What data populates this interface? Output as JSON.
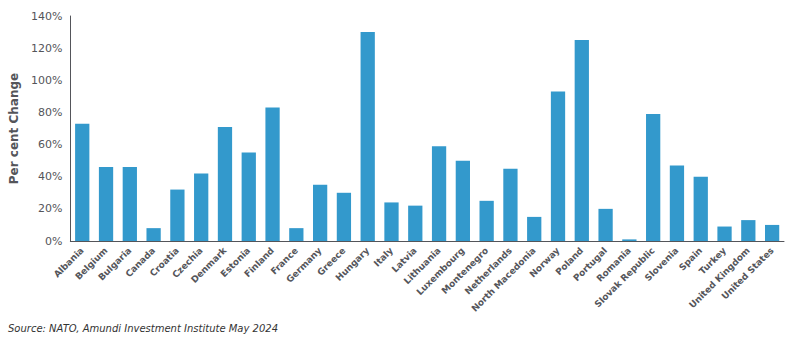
{
  "chart_data": {
    "type": "bar",
    "ylabel": "Per cent Change",
    "annotation": "Source: NATO, Amundi Investment Institute May 2024",
    "categories": [
      "Albania",
      "Belgium",
      "Bulgaria",
      "Canada",
      "Croatia",
      "Czechia",
      "Denmark",
      "Estonia",
      "Finland",
      "France",
      "Germany",
      "Greece",
      "Hungary",
      "Italy",
      "Latvia",
      "Lithuania",
      "Luxembourg",
      "Montenegro",
      "Netherlands",
      "North Macedonia",
      "Norway",
      "Poland",
      "Portugal",
      "Romania",
      "Slovak Republic",
      "Slovenia",
      "Spain",
      "Turkey",
      "United Kingdom",
      "United States"
    ],
    "values": [
      73,
      46,
      46,
      8,
      32,
      42,
      71,
      55,
      83,
      8,
      35,
      30,
      130,
      24,
      22,
      59,
      50,
      25,
      45,
      15,
      93,
      125,
      20,
      1,
      79,
      47,
      40,
      9,
      13,
      10
    ],
    "color": "#3399cc",
    "ylim": [
      0,
      140
    ],
    "yticks": [
      {
        "value": 0,
        "label": "0%"
      },
      {
        "value": 20,
        "label": "20%"
      },
      {
        "value": 40,
        "label": "40%"
      },
      {
        "value": 60,
        "label": "60%"
      },
      {
        "value": 80,
        "label": "80%"
      },
      {
        "value": 100,
        "label": "100%"
      },
      {
        "value": 120,
        "label": "120%"
      },
      {
        "value": 140,
        "label": "140%"
      }
    ],
    "grid": false
  }
}
